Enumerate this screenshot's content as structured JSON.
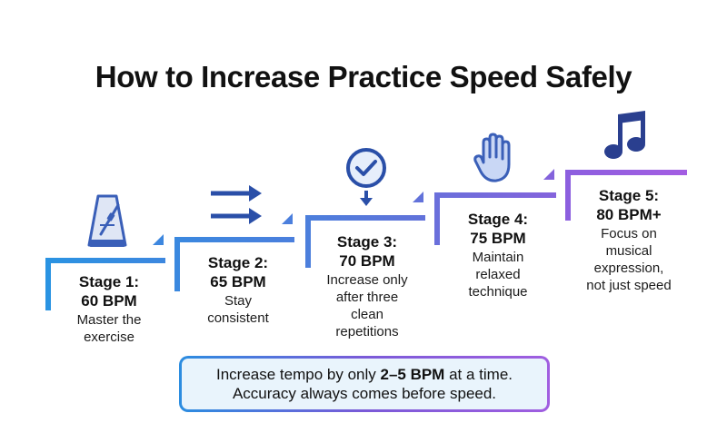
{
  "title": "How to Increase Practice Speed Safely",
  "stages": [
    {
      "head1": "Stage 1:",
      "head2": "60 BPM",
      "desc": [
        "Master the",
        "exercise"
      ],
      "icon": "metronome-icon",
      "color": "#2f8fe0"
    },
    {
      "head1": "Stage 2:",
      "head2": "65 BPM",
      "desc": [
        "Stay",
        "consistent"
      ],
      "icon": "double-arrow-icon",
      "color": "#3f84de"
    },
    {
      "head1": "Stage 3:",
      "head2": "70 BPM",
      "desc": [
        "Increase only",
        "after three",
        "clean",
        "repetitions"
      ],
      "icon": "checkmark-icon",
      "color": "#5a78dc"
    },
    {
      "head1": "Stage 4:",
      "head2": "75 BPM",
      "desc": [
        "Maintain",
        "relaxed",
        "technique"
      ],
      "icon": "hand-icon",
      "color": "#7468da"
    },
    {
      "head1": "Stage 5:",
      "head2": "80 BPM+",
      "desc": [
        "Focus on",
        "musical",
        "expression,",
        "not just speed"
      ],
      "icon": "music-note-icon",
      "color": "#9a5ee0"
    }
  ],
  "note": {
    "line1_pre": "Increase tempo by only ",
    "line1_bold": "2–5 BPM",
    "line1_post": " at a time.",
    "line2": "Accuracy always comes before speed."
  },
  "colors": {
    "icon_blue": "#3a5fb8",
    "title": "#111111"
  }
}
